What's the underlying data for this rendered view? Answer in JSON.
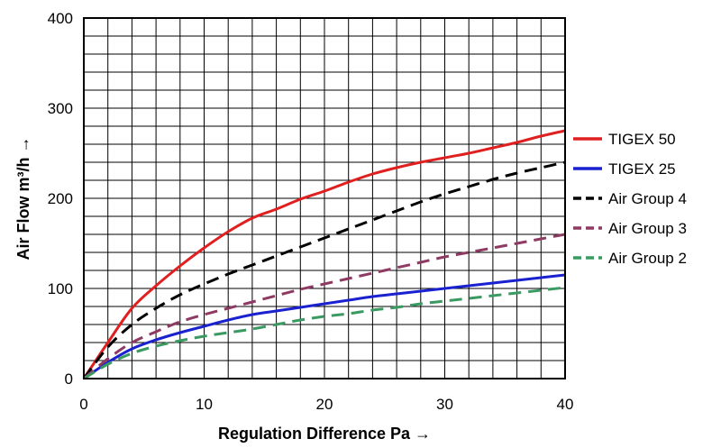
{
  "chart_data": {
    "type": "line",
    "xlabel": "Regulation Difference Pa →",
    "ylabel": "Air Flow m³/h →",
    "xlim": [
      0,
      40
    ],
    "ylim": [
      0,
      400
    ],
    "x_ticks": [
      0,
      10,
      20,
      30,
      40
    ],
    "y_ticks": [
      0,
      100,
      200,
      300,
      400
    ],
    "grid": true,
    "grid_x_step": 2,
    "grid_y_step": 20,
    "legend_position": "right",
    "series": [
      {
        "name": "TIGEX 50",
        "color": "#e02020",
        "dash": "solid",
        "points": [
          [
            0,
            0
          ],
          [
            2,
            40
          ],
          [
            4,
            78
          ],
          [
            6,
            103
          ],
          [
            8,
            125
          ],
          [
            10,
            145
          ],
          [
            12,
            163
          ],
          [
            14,
            178
          ],
          [
            16,
            188
          ],
          [
            18,
            199
          ],
          [
            20,
            208
          ],
          [
            22,
            218
          ],
          [
            24,
            227
          ],
          [
            26,
            234
          ],
          [
            28,
            240
          ],
          [
            30,
            245
          ],
          [
            32,
            250
          ],
          [
            34,
            256
          ],
          [
            36,
            262
          ],
          [
            38,
            269
          ],
          [
            40,
            275
          ]
        ]
      },
      {
        "name": "TIGEX 25",
        "color": "#1a22d0",
        "dash": "solid",
        "points": [
          [
            0,
            0
          ],
          [
            2,
            18
          ],
          [
            4,
            33
          ],
          [
            6,
            43
          ],
          [
            8,
            51
          ],
          [
            10,
            58
          ],
          [
            12,
            65
          ],
          [
            14,
            71
          ],
          [
            16,
            75
          ],
          [
            18,
            79
          ],
          [
            20,
            83
          ],
          [
            22,
            87
          ],
          [
            24,
            91
          ],
          [
            26,
            94
          ],
          [
            28,
            97
          ],
          [
            30,
            100
          ],
          [
            32,
            103
          ],
          [
            34,
            106
          ],
          [
            36,
            109
          ],
          [
            38,
            112
          ],
          [
            40,
            115
          ]
        ]
      },
      {
        "name": "Air Group 4",
        "color": "#000000",
        "dash": "dashed",
        "points": [
          [
            0,
            0
          ],
          [
            2,
            35
          ],
          [
            4,
            60
          ],
          [
            6,
            78
          ],
          [
            8,
            93
          ],
          [
            10,
            105
          ],
          [
            12,
            116
          ],
          [
            14,
            126
          ],
          [
            16,
            136
          ],
          [
            18,
            146
          ],
          [
            20,
            156
          ],
          [
            22,
            166
          ],
          [
            24,
            176
          ],
          [
            26,
            186
          ],
          [
            28,
            196
          ],
          [
            30,
            205
          ],
          [
            32,
            213
          ],
          [
            34,
            221
          ],
          [
            36,
            228
          ],
          [
            38,
            234
          ],
          [
            40,
            240
          ]
        ]
      },
      {
        "name": "Air Group 3",
        "color": "#8e3a63",
        "dash": "dashed",
        "points": [
          [
            0,
            0
          ],
          [
            2,
            22
          ],
          [
            4,
            40
          ],
          [
            6,
            52
          ],
          [
            8,
            63
          ],
          [
            10,
            71
          ],
          [
            12,
            78
          ],
          [
            14,
            85
          ],
          [
            16,
            92
          ],
          [
            18,
            99
          ],
          [
            20,
            105
          ],
          [
            22,
            111
          ],
          [
            24,
            117
          ],
          [
            26,
            123
          ],
          [
            28,
            129
          ],
          [
            30,
            135
          ],
          [
            32,
            140
          ],
          [
            34,
            145
          ],
          [
            36,
            150
          ],
          [
            38,
            155
          ],
          [
            40,
            160
          ]
        ]
      },
      {
        "name": "Air Group 2",
        "color": "#3a9a62",
        "dash": "dashed",
        "points": [
          [
            0,
            0
          ],
          [
            2,
            16
          ],
          [
            4,
            28
          ],
          [
            6,
            36
          ],
          [
            8,
            42
          ],
          [
            10,
            47
          ],
          [
            12,
            51
          ],
          [
            14,
            55
          ],
          [
            16,
            60
          ],
          [
            18,
            65
          ],
          [
            20,
            69
          ],
          [
            22,
            72
          ],
          [
            24,
            76
          ],
          [
            26,
            79
          ],
          [
            28,
            83
          ],
          [
            30,
            86
          ],
          [
            32,
            89
          ],
          [
            34,
            92
          ],
          [
            36,
            95
          ],
          [
            38,
            98
          ],
          [
            40,
            101
          ]
        ]
      }
    ]
  }
}
